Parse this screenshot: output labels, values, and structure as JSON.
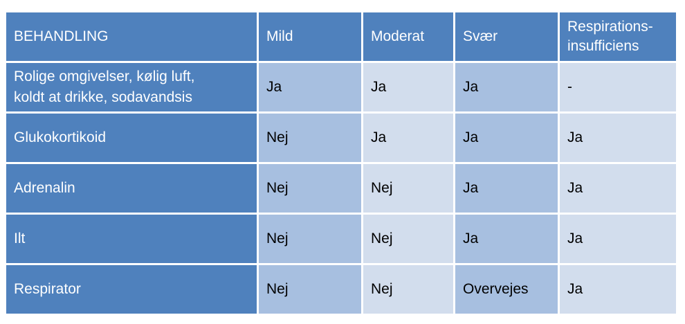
{
  "table": {
    "headers": [
      "BEHANDLING",
      "Mild",
      "Moderat",
      "Svær",
      "Respirations-\ninsufficiens"
    ],
    "header_last_line1": "Respirations-",
    "header_last_line2": "insufficiens",
    "rows": [
      {
        "label_line1": "Rolige omgivelser, kølig luft,",
        "label_line2": "koldt at drikke, sodavandsis",
        "cells": [
          "Ja",
          "Ja",
          "Ja",
          "-"
        ]
      },
      {
        "label": "Glukokortikoid",
        "cells": [
          "Nej",
          "Ja",
          "Ja",
          "Ja"
        ]
      },
      {
        "label": "Adrenalin",
        "cells": [
          "Nej",
          "Nej",
          "Ja",
          "Ja"
        ]
      },
      {
        "label": "Ilt",
        "cells": [
          "Nej",
          "Nej",
          "Ja",
          "Ja"
        ]
      },
      {
        "label": "Respirator",
        "cells": [
          "Nej",
          "Nej",
          "Overvejes",
          "Ja"
        ]
      }
    ]
  },
  "colors": {
    "header_blue": "#4f81bd",
    "cell_dark": "#a7bfe0",
    "cell_light": "#d2dded"
  }
}
